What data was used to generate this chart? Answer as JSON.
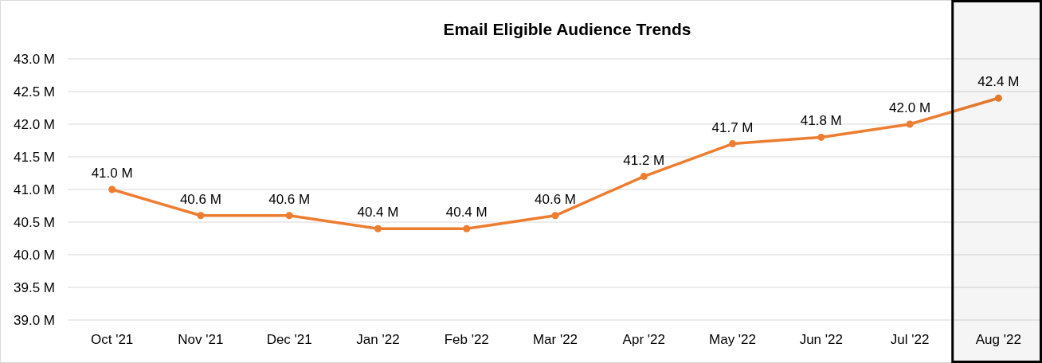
{
  "chart_data": {
    "type": "line",
    "title": "Email Eligible Audience Trends",
    "categories": [
      "Oct '21",
      "Nov '21",
      "Dec '21",
      "Jan '22",
      "Feb '22",
      "Mar '22",
      "Apr '22",
      "May '22",
      "Jun '22",
      "Jul '22",
      "Aug '22"
    ],
    "series": [
      {
        "color": "#ed7d31",
        "values": [
          41.0,
          40.6,
          40.6,
          40.4,
          40.4,
          40.6,
          41.2,
          41.7,
          41.8,
          42.0,
          42.4
        ],
        "value_labels": [
          "41.0 M",
          "40.6 M",
          "40.6 M",
          "40.4 M",
          "40.4 M",
          "40.6 M",
          "41.2 M",
          "41.7 M",
          "41.8 M",
          "42.0 M",
          "42.4 M"
        ]
      }
    ],
    "ylim": [
      39,
      43
    ],
    "yticks": [
      {
        "value": 39,
        "label": "39.0 M"
      },
      {
        "value": 39.5,
        "label": "39.5 M"
      },
      {
        "value": 40,
        "label": "40.0 M"
      },
      {
        "value": 40.5,
        "label": "40.5 M"
      },
      {
        "value": 41,
        "label": "41.0 M"
      },
      {
        "value": 41.5,
        "label": "41.5 M"
      },
      {
        "value": 42,
        "label": "42.0 M"
      },
      {
        "value": 42.5,
        "label": "42.5 M"
      },
      {
        "value": 43,
        "label": "43.0 M"
      }
    ],
    "grid": "y",
    "marker": "circle",
    "line_style": "solid",
    "bands": [
      {
        "axis": "x",
        "from": "Aug '22",
        "to": "Aug '22",
        "color": "#000000"
      }
    ]
  }
}
